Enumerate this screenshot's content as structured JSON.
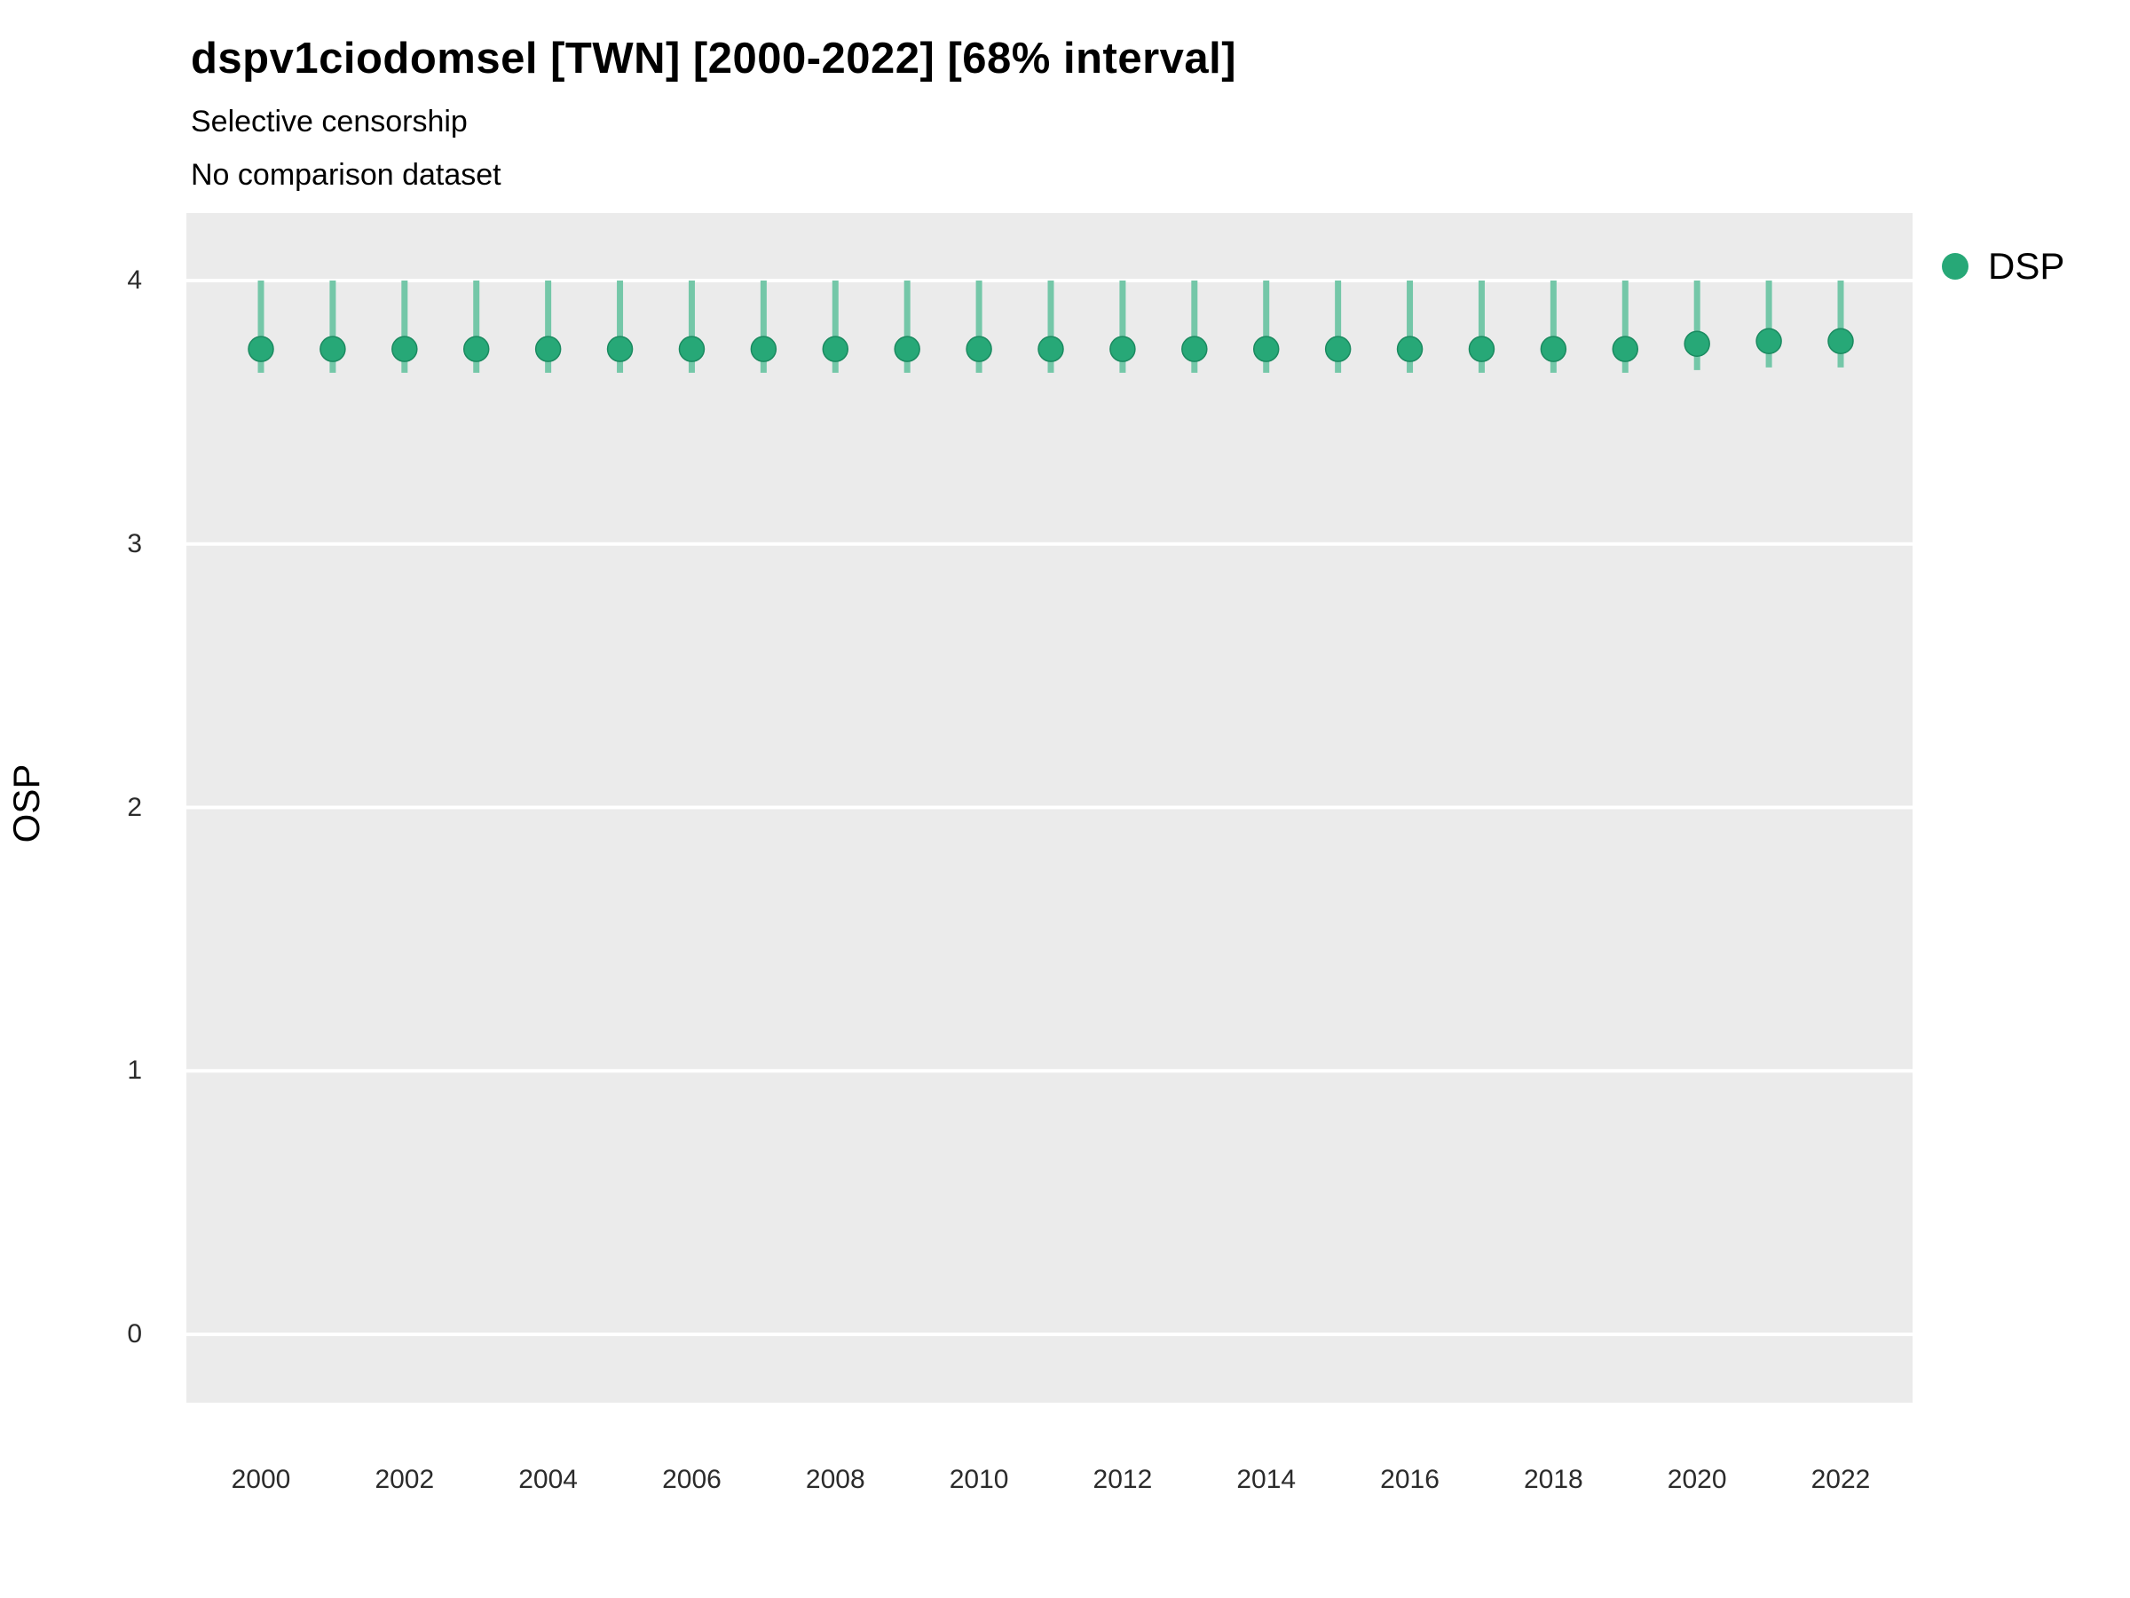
{
  "title": "dspv1ciodomsel [TWN] [2000-2022] [68% interval]",
  "subtitle1": "Selective censorship",
  "subtitle2": "No comparison dataset",
  "y_axis_label": "OSP",
  "legend": {
    "label": "DSP"
  },
  "colors": {
    "point": "#27a877",
    "interval": "#74c7a8",
    "panel": "#ebebeb",
    "grid": "#ffffff",
    "text": "#2b2b2b"
  },
  "chart_data": {
    "type": "scatter",
    "title": "dspv1ciodomsel [TWN] [2000-2022] [68% interval]",
    "subtitle": "Selective censorship / No comparison dataset",
    "xlabel": "",
    "ylabel": "OSP",
    "ylim": [
      -0.26,
      4.26
    ],
    "xlim": [
      1999,
      2023
    ],
    "grid": "major-horizontal, white on gray panel",
    "legend_position": "right",
    "y_ticks": [
      0,
      1,
      2,
      3,
      4
    ],
    "x_ticks": [
      2000,
      2002,
      2004,
      2006,
      2008,
      2010,
      2012,
      2014,
      2016,
      2018,
      2020,
      2022
    ],
    "x": [
      2000,
      2001,
      2002,
      2003,
      2004,
      2005,
      2006,
      2007,
      2008,
      2009,
      2010,
      2011,
      2012,
      2013,
      2014,
      2015,
      2016,
      2017,
      2018,
      2019,
      2020,
      2021,
      2022
    ],
    "series": [
      {
        "name": "DSP",
        "values": [
          3.74,
          3.74,
          3.74,
          3.74,
          3.74,
          3.74,
          3.74,
          3.74,
          3.74,
          3.74,
          3.74,
          3.74,
          3.74,
          3.74,
          3.74,
          3.74,
          3.74,
          3.74,
          3.74,
          3.74,
          3.76,
          3.77,
          3.77
        ],
        "lower": [
          3.65,
          3.65,
          3.65,
          3.65,
          3.65,
          3.65,
          3.65,
          3.65,
          3.65,
          3.65,
          3.65,
          3.65,
          3.65,
          3.65,
          3.65,
          3.65,
          3.65,
          3.65,
          3.65,
          3.65,
          3.66,
          3.67,
          3.67
        ],
        "upper": [
          4.0,
          4.0,
          4.0,
          4.0,
          4.0,
          4.0,
          4.0,
          4.0,
          4.0,
          4.0,
          4.0,
          4.0,
          4.0,
          4.0,
          4.0,
          4.0,
          4.0,
          4.0,
          4.0,
          4.0,
          4.0,
          4.0,
          4.0
        ],
        "interval": "68%"
      }
    ]
  }
}
